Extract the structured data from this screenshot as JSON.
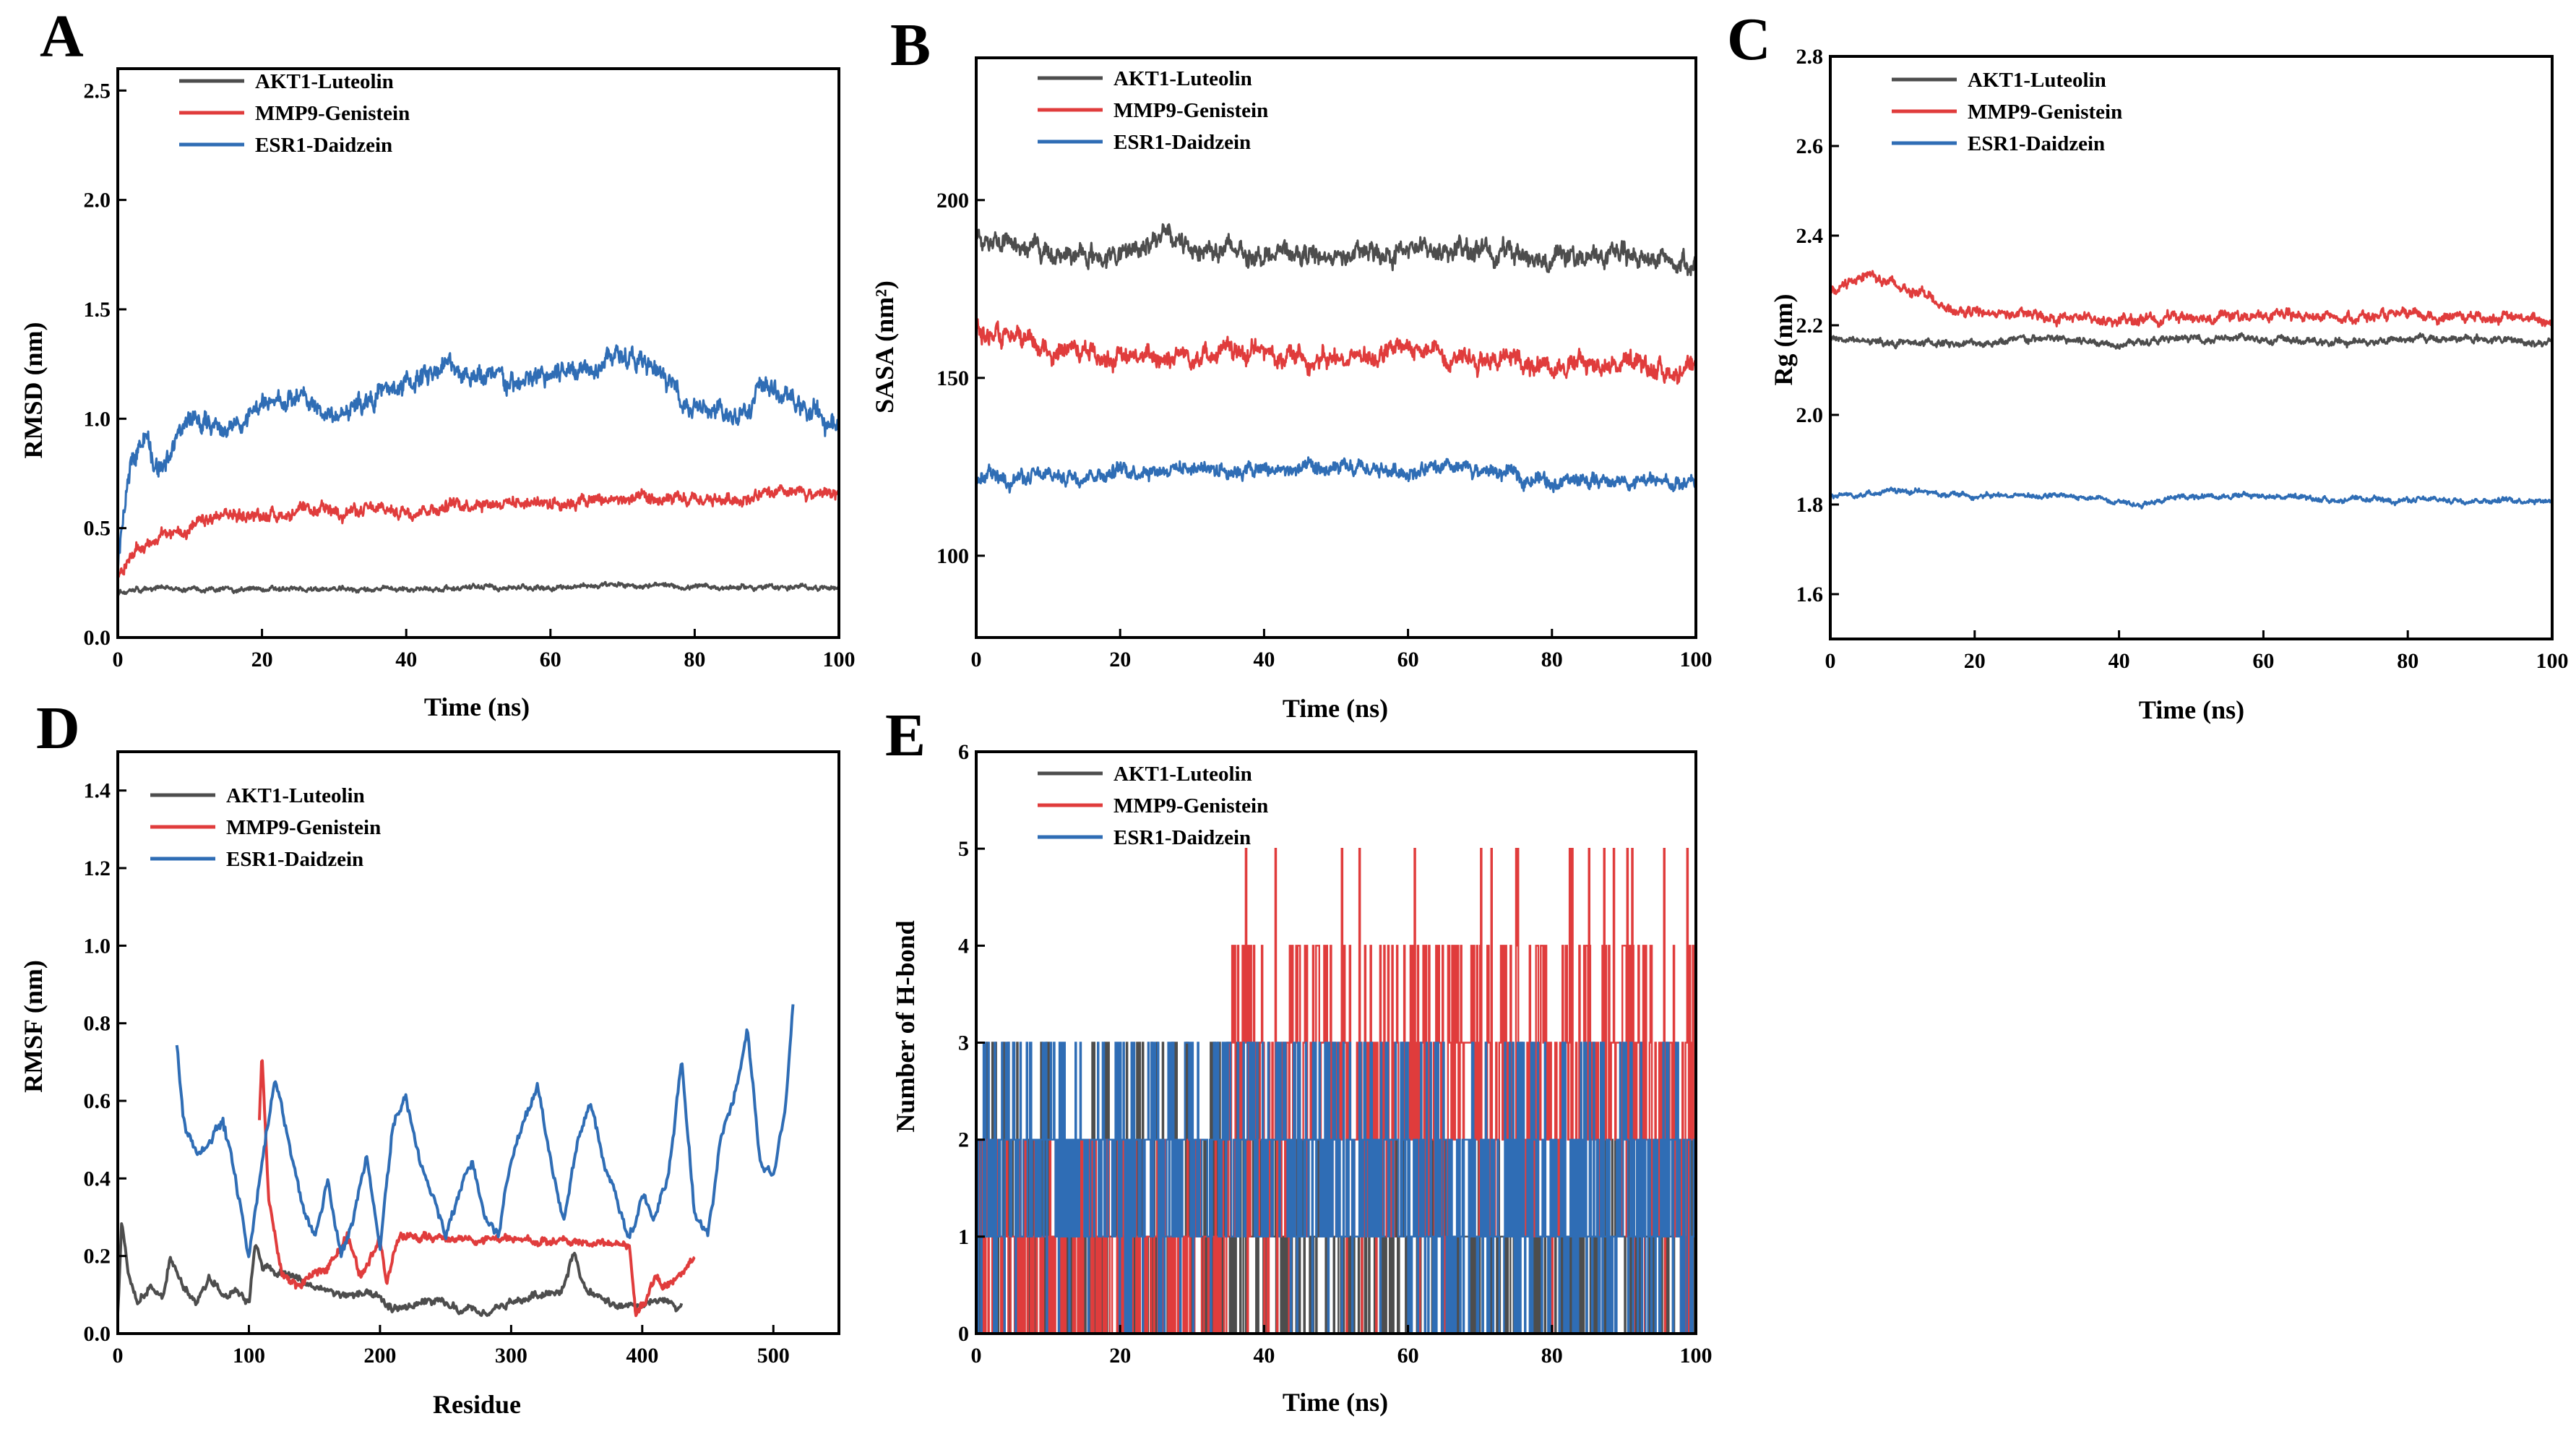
{
  "chart_data": [
    {
      "panel": "A",
      "type": "line",
      "xlabel": "Time (ns)",
      "ylabel": "RMSD (nm)",
      "xlim": [
        0,
        100
      ],
      "ylim": [
        0,
        2.6
      ],
      "xticks": [
        "0",
        "20",
        "40",
        "60",
        "80",
        "100"
      ],
      "yticks": [
        "0.0",
        "0.5",
        "1.0",
        "1.5",
        "2.0",
        "2.5"
      ],
      "grid": false,
      "legend": "top-left",
      "colors": [
        "#4d4d4d",
        "#e03c3c",
        "#2f6db5"
      ],
      "series": [
        {
          "name": "AKT1-Luteolin",
          "x": [
            0,
            2,
            5,
            10,
            20,
            30,
            40,
            50,
            60,
            70,
            80,
            90,
            100
          ],
          "values": [
            0.2,
            0.22,
            0.23,
            0.22,
            0.22,
            0.22,
            0.22,
            0.23,
            0.23,
            0.24,
            0.23,
            0.23,
            0.23
          ]
        },
        {
          "name": "MMP9-Genistein",
          "x": [
            0,
            2,
            5,
            10,
            15,
            20,
            30,
            40,
            50,
            60,
            70,
            80,
            90,
            100
          ],
          "values": [
            0.28,
            0.38,
            0.45,
            0.5,
            0.56,
            0.56,
            0.58,
            0.58,
            0.62,
            0.62,
            0.63,
            0.62,
            0.65,
            0.66
          ]
        },
        {
          "name": "ESR1-Daidzein",
          "x": [
            0,
            2,
            4,
            5,
            8,
            10,
            15,
            20,
            25,
            30,
            35,
            40,
            45,
            50,
            55,
            60,
            65,
            70,
            75,
            80,
            85,
            90,
            95,
            100
          ],
          "values": [
            0.3,
            0.85,
            0.95,
            0.75,
            0.9,
            1.0,
            0.95,
            1.05,
            1.1,
            1.0,
            1.1,
            1.15,
            1.25,
            1.2,
            1.15,
            1.2,
            1.25,
            1.3,
            1.2,
            1.05,
            1.0,
            1.15,
            1.05,
            0.95
          ]
        }
      ]
    },
    {
      "panel": "B",
      "type": "line",
      "xlabel": "Time (ns)",
      "ylabel": "SASA (nm²)",
      "xlim": [
        0,
        100
      ],
      "ylim": [
        77,
        240
      ],
      "xticks": [
        "0",
        "20",
        "40",
        "60",
        "80",
        "100"
      ],
      "yticks": [
        "100",
        "150",
        "200"
      ],
      "grid": false,
      "legend": "top-left",
      "colors": [
        "#4d4d4d",
        "#e03c3c",
        "#2f6db5"
      ],
      "series": [
        {
          "name": "AKT1-Luteolin",
          "x": [
            0,
            5,
            10,
            20,
            25,
            30,
            40,
            50,
            60,
            70,
            80,
            90,
            100
          ],
          "values": [
            190,
            188,
            185,
            184,
            190,
            187,
            185,
            184,
            186,
            186,
            184,
            184,
            183
          ]
        },
        {
          "name": "MMP9-Genistein",
          "x": [
            0,
            5,
            10,
            15,
            20,
            30,
            40,
            50,
            60,
            70,
            80,
            90,
            100
          ],
          "values": [
            163,
            160,
            158,
            158,
            155,
            157,
            157,
            155,
            158,
            156,
            154,
            154,
            151
          ]
        },
        {
          "name": "ESR1-Daidzein",
          "x": [
            0,
            10,
            20,
            30,
            40,
            50,
            60,
            70,
            80,
            90,
            100
          ],
          "values": [
            122,
            122,
            124,
            125,
            124,
            124,
            124,
            124,
            121,
            121,
            120
          ]
        }
      ]
    },
    {
      "panel": "C",
      "type": "line",
      "xlabel": "Time (ns)",
      "ylabel": "Rg (nm)",
      "xlim": [
        0,
        100
      ],
      "ylim": [
        1.5,
        2.8
      ],
      "xticks": [
        "0",
        "20",
        "40",
        "60",
        "80",
        "100"
      ],
      "yticks": [
        "1.6",
        "1.8",
        "2.0",
        "2.2",
        "2.4",
        "2.6",
        "2.8"
      ],
      "grid": false,
      "legend": "top-left",
      "colors": [
        "#4d4d4d",
        "#e03c3c",
        "#2f6db5"
      ],
      "series": [
        {
          "name": "AKT1-Luteolin",
          "x": [
            0,
            10,
            20,
            30,
            40,
            50,
            60,
            70,
            80,
            90,
            100
          ],
          "values": [
            2.17,
            2.16,
            2.16,
            2.17,
            2.16,
            2.17,
            2.17,
            2.16,
            2.17,
            2.17,
            2.16
          ]
        },
        {
          "name": "MMP9-Genistein",
          "x": [
            0,
            3,
            5,
            10,
            13,
            16,
            20,
            30,
            40,
            50,
            60,
            70,
            80,
            90,
            100
          ],
          "values": [
            2.27,
            2.3,
            2.32,
            2.28,
            2.28,
            2.23,
            2.23,
            2.22,
            2.21,
            2.22,
            2.22,
            2.22,
            2.22,
            2.22,
            2.21
          ]
        },
        {
          "name": "ESR1-Daidzein",
          "x": [
            0,
            10,
            20,
            30,
            40,
            42,
            50,
            60,
            70,
            80,
            90,
            100
          ],
          "values": [
            1.82,
            1.83,
            1.82,
            1.82,
            1.81,
            1.8,
            1.82,
            1.82,
            1.81,
            1.81,
            1.81,
            1.81
          ]
        }
      ]
    },
    {
      "panel": "D",
      "type": "line",
      "xlabel": "Residue",
      "ylabel": "RMSF (nm)",
      "xlim": [
        0,
        550
      ],
      "ylim": [
        0,
        1.5
      ],
      "xticks": [
        "0",
        "100",
        "200",
        "300",
        "400",
        "500"
      ],
      "yticks": [
        "0.0",
        "0.2",
        "0.4",
        "0.6",
        "0.8",
        "1.0",
        "1.2",
        "1.4"
      ],
      "grid": false,
      "legend": "top-left",
      "colors": [
        "#4d4d4d",
        "#e03c3c",
        "#2f6db5"
      ],
      "series": [
        {
          "name": "AKT1-Luteolin",
          "x": [
            0,
            3,
            8,
            15,
            25,
            35,
            40,
            50,
            60,
            70,
            80,
            90,
            100,
            105,
            110,
            130,
            150,
            170,
            190,
            200,
            210,
            220,
            240,
            260,
            280,
            300,
            320,
            340,
            348,
            355,
            370,
            390,
            410,
            430
          ],
          "values": [
            0.05,
            0.3,
            0.15,
            0.08,
            0.12,
            0.1,
            0.2,
            0.12,
            0.08,
            0.15,
            0.1,
            0.12,
            0.08,
            0.25,
            0.17,
            0.15,
            0.12,
            0.1,
            0.1,
            0.08,
            0.06,
            0.07,
            0.08,
            0.06,
            0.05,
            0.08,
            0.1,
            0.12,
            0.22,
            0.12,
            0.08,
            0.06,
            0.08,
            0.07
          ]
        },
        {
          "name": "MMP9-Genistein",
          "x": [
            108,
            110,
            115,
            125,
            140,
            160,
            175,
            185,
            200,
            205,
            210,
            215,
            390,
            395,
            400,
            410,
            420,
            430,
            440
          ],
          "values": [
            0.55,
            0.73,
            0.35,
            0.15,
            0.12,
            0.18,
            0.25,
            0.15,
            0.25,
            0.12,
            0.2,
            0.25,
            0.23,
            0.05,
            0.07,
            0.15,
            0.12,
            0.15,
            0.2
          ]
        },
        {
          "name": "ESR1-Daidzein",
          "x": [
            45,
            50,
            60,
            70,
            80,
            90,
            100,
            110,
            115,
            120,
            130,
            140,
            150,
            160,
            170,
            180,
            190,
            200,
            210,
            220,
            230,
            240,
            250,
            260,
            270,
            280,
            290,
            300,
            310,
            320,
            330,
            340,
            350,
            360,
            370,
            380,
            390,
            400,
            410,
            420,
            430,
            440,
            450,
            460,
            470,
            480,
            490,
            500,
            510,
            515
          ],
          "values": [
            0.75,
            0.55,
            0.45,
            0.5,
            0.55,
            0.4,
            0.2,
            0.45,
            0.55,
            0.65,
            0.5,
            0.35,
            0.25,
            0.4,
            0.2,
            0.3,
            0.45,
            0.2,
            0.55,
            0.6,
            0.45,
            0.35,
            0.25,
            0.35,
            0.45,
            0.3,
            0.25,
            0.45,
            0.55,
            0.65,
            0.45,
            0.3,
            0.5,
            0.6,
            0.45,
            0.35,
            0.25,
            0.35,
            0.3,
            0.4,
            0.7,
            0.3,
            0.25,
            0.5,
            0.6,
            0.8,
            0.45,
            0.4,
            0.6,
            0.85
          ]
        }
      ]
    },
    {
      "panel": "E",
      "type": "line",
      "xlabel": "Time (ns)",
      "ylabel": "Number of H-bond",
      "xlim": [
        0,
        100
      ],
      "ylim": [
        0,
        6
      ],
      "xticks": [
        "0",
        "20",
        "40",
        "60",
        "80",
        "100"
      ],
      "yticks": [
        "0",
        "1",
        "2",
        "3",
        "4",
        "5",
        "6"
      ],
      "grid": false,
      "legend": "top-left",
      "colors": [
        "#4d4d4d",
        "#e03c3c",
        "#2f6db5"
      ],
      "series": [
        {
          "name": "AKT1-Luteolin",
          "x": [
            0,
            100
          ],
          "values": [
            1,
            1
          ]
        },
        {
          "name": "MMP9-Genistein",
          "x": [
            0,
            100
          ],
          "values": [
            1,
            3
          ]
        },
        {
          "name": "ESR1-Daidzein",
          "x": [
            0,
            100
          ],
          "values": [
            2,
            2
          ]
        }
      ]
    }
  ]
}
